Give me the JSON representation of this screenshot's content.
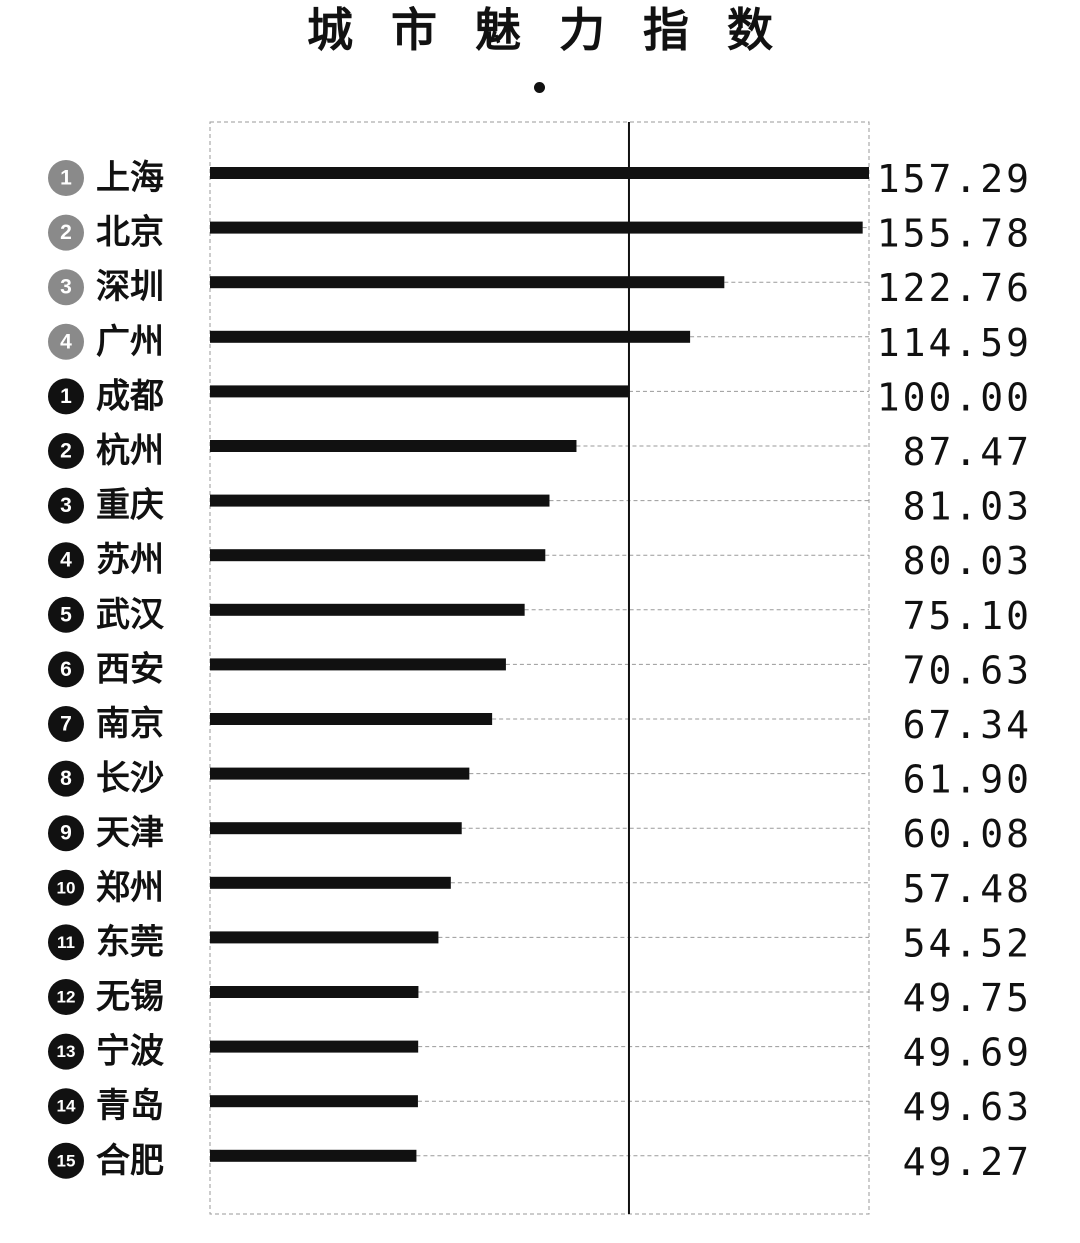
{
  "title": "城市魅力指数",
  "colors": {
    "bar": "#111111",
    "top_badge": "#8a8a8a",
    "rank_badge": "#111111",
    "grid": "#9a9a9a",
    "reference_line": "#111111"
  },
  "chart_data": {
    "type": "bar",
    "orientation": "horizontal",
    "title": "城市魅力指数",
    "reference_value": 100,
    "xlim": [
      0,
      157.29
    ],
    "grid": true,
    "categories": [
      "上海",
      "北京",
      "深圳",
      "广州",
      "成都",
      "杭州",
      "重庆",
      "苏州",
      "武汉",
      "西安",
      "南京",
      "长沙",
      "天津",
      "郑州",
      "东莞",
      "无锡",
      "宁波",
      "青岛",
      "合肥"
    ],
    "values": [
      157.29,
      155.78,
      122.76,
      114.59,
      100.0,
      87.47,
      81.03,
      80.03,
      75.1,
      70.63,
      67.34,
      61.9,
      60.08,
      57.48,
      54.52,
      49.75,
      49.69,
      49.63,
      49.27
    ],
    "value_labels": [
      "157.29",
      "155.78",
      "122.76",
      "114.59",
      "100.00",
      "87.47",
      "81.03",
      "80.03",
      "75.10",
      "70.63",
      "67.34",
      "61.90",
      "60.08",
      "57.48",
      "54.52",
      "49.75",
      "49.69",
      "49.63",
      "49.27"
    ],
    "ranks": [
      "1",
      "2",
      "3",
      "4",
      "1",
      "2",
      "3",
      "4",
      "5",
      "6",
      "7",
      "8",
      "9",
      "10",
      "11",
      "12",
      "13",
      "14",
      "15"
    ],
    "rank_groups": [
      "top",
      "top",
      "top",
      "top",
      "new",
      "new",
      "new",
      "new",
      "new",
      "new",
      "new",
      "new",
      "new",
      "new",
      "new",
      "new",
      "new",
      "new",
      "new"
    ]
  }
}
